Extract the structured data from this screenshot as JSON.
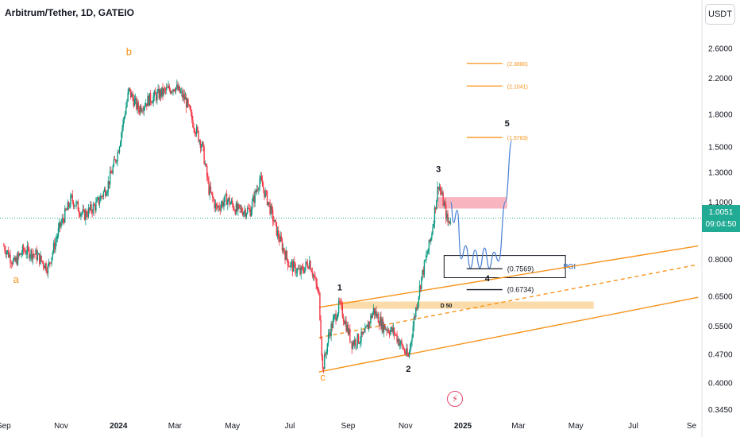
{
  "header": {
    "symbol_title": "Arbitrum/Tether, 1D, GATEIO",
    "currency_button": "USDT"
  },
  "price_tag": {
    "price": "1.0051",
    "countdown": "09:04:50"
  },
  "icons": {
    "alert": "lightning-bolt-icon"
  },
  "colors": {
    "up": "#089981",
    "down": "#f23645",
    "fib": "#f7931a",
    "projection": "#4a7fd4",
    "current_price": "#22ab94"
  },
  "chart_data": {
    "type": "candlestick",
    "title": "Arbitrum/Tether, 1D, GATEIO",
    "y_axis": {
      "scale": "log",
      "range": [
        0.33,
        2.85
      ],
      "ticks": [
        "2.6000",
        "2.2000",
        "1.8000",
        "1.5000",
        "1.3000",
        "1.1000",
        "0.8000",
        "0.6500",
        "0.5500",
        "0.4700",
        "0.4000",
        "0.3450"
      ]
    },
    "x_axis": {
      "ticks": [
        "Sep",
        "Nov",
        "2024",
        "Mar",
        "May",
        "Jul",
        "Sep",
        "Nov",
        "2025",
        "Mar",
        "May",
        "Jul",
        "Se"
      ]
    },
    "price_path": [
      {
        "t": "2023-09-01",
        "p": 0.86
      },
      {
        "t": "2023-09-12",
        "p": 0.78
      },
      {
        "t": "2023-09-22",
        "p": 0.84
      },
      {
        "t": "2023-10-05",
        "p": 0.82
      },
      {
        "t": "2023-10-18",
        "p": 0.76
      },
      {
        "t": "2023-10-30",
        "p": 0.95
      },
      {
        "t": "2023-11-12",
        "p": 1.12
      },
      {
        "t": "2023-11-25",
        "p": 1.02
      },
      {
        "t": "2023-12-08",
        "p": 1.08
      },
      {
        "t": "2023-12-20",
        "p": 1.2
      },
      {
        "t": "2023-12-31",
        "p": 1.45
      },
      {
        "t": "2024-01-12",
        "p": 2.05
      },
      {
        "t": "2024-01-22",
        "p": 1.85
      },
      {
        "t": "2024-02-02",
        "p": 1.95
      },
      {
        "t": "2024-02-15",
        "p": 2.02
      },
      {
        "t": "2024-03-01",
        "p": 2.1
      },
      {
        "t": "2024-03-12",
        "p": 1.95
      },
      {
        "t": "2024-03-20",
        "p": 1.72
      },
      {
        "t": "2024-03-30",
        "p": 1.5
      },
      {
        "t": "2024-04-06",
        "p": 1.18
      },
      {
        "t": "2024-04-14",
        "p": 1.06
      },
      {
        "t": "2024-04-25",
        "p": 1.12
      },
      {
        "t": "2024-05-06",
        "p": 1.05
      },
      {
        "t": "2024-05-20",
        "p": 1.05
      },
      {
        "t": "2024-05-30",
        "p": 1.25
      },
      {
        "t": "2024-06-08",
        "p": 1.1
      },
      {
        "t": "2024-06-18",
        "p": 0.92
      },
      {
        "t": "2024-06-30",
        "p": 0.78
      },
      {
        "t": "2024-07-12",
        "p": 0.74
      },
      {
        "t": "2024-07-22",
        "p": 0.79
      },
      {
        "t": "2024-08-01",
        "p": 0.65
      },
      {
        "t": "2024-08-05",
        "p": 0.43
      },
      {
        "t": "2024-08-12",
        "p": 0.53
      },
      {
        "t": "2024-08-23",
        "p": 0.62
      },
      {
        "t": "2024-09-05",
        "p": 0.5
      },
      {
        "t": "2024-09-18",
        "p": 0.52
      },
      {
        "t": "2024-09-28",
        "p": 0.6
      },
      {
        "t": "2024-10-08",
        "p": 0.55
      },
      {
        "t": "2024-10-20",
        "p": 0.53
      },
      {
        "t": "2024-11-04",
        "p": 0.46
      },
      {
        "t": "2024-11-10",
        "p": 0.57
      },
      {
        "t": "2024-11-18",
        "p": 0.72
      },
      {
        "t": "2024-11-28",
        "p": 0.9
      },
      {
        "t": "2024-12-06",
        "p": 1.22
      },
      {
        "t": "2024-12-12",
        "p": 1.08
      },
      {
        "t": "2024-12-16",
        "p": 0.98
      },
      {
        "t": "2024-12-19",
        "p": 1.0
      }
    ],
    "current_price": 1.0051,
    "wave_labels": [
      {
        "text": "b",
        "t": "2024-01-12",
        "p": 2.5,
        "color": "#f7931a"
      },
      {
        "text": "a",
        "t": "2023-09-14",
        "p": 0.7,
        "color": "#f7931a"
      },
      {
        "text": "c",
        "t": "2024-08-05",
        "p": 0.405,
        "color": "#f7931a"
      },
      {
        "text": "1",
        "t": "2024-08-23",
        "p": 0.67,
        "color": "#131722"
      },
      {
        "text": "2",
        "t": "2024-11-04",
        "p": 0.425,
        "color": "#131722"
      },
      {
        "text": "3",
        "t": "2024-12-06",
        "p": 1.3,
        "color": "#131722"
      },
      {
        "text": "4",
        "t": "2025-01-27",
        "p": 0.705,
        "color": "#131722"
      },
      {
        "text": "5",
        "t": "2025-02-17",
        "p": 1.68,
        "color": "#131722"
      }
    ],
    "targets": [
      {
        "label": "(2.3880)",
        "value": 2.388,
        "from": "2025-01-05",
        "to": "2025-02-12",
        "color": "#f7931a"
      },
      {
        "label": "(2.1041)",
        "value": 2.1041,
        "from": "2025-01-05",
        "to": "2025-02-12",
        "color": "#f7931a"
      },
      {
        "label": "(1.5783)",
        "value": 1.5783,
        "from": "2025-01-05",
        "to": "2025-02-12",
        "color": "#f7931a"
      },
      {
        "label": "(0.7569)",
        "value": 0.7569,
        "from": "2025-01-05",
        "to": "2025-02-12",
        "color": "#131722"
      },
      {
        "label": "(0.6734)",
        "value": 0.6734,
        "from": "2025-01-05",
        "to": "2025-02-12",
        "color": "#131722"
      }
    ],
    "zones": [
      {
        "kind": "resistance",
        "label": "",
        "from": "2024-12-04",
        "to": "2025-02-17",
        "high": 1.13,
        "low": 1.06,
        "color": "#f7a8b4"
      },
      {
        "kind": "poi_box",
        "label": "POI",
        "from": "2024-12-12",
        "to": "2025-04-20",
        "high": 0.815,
        "low": 0.72,
        "color": "#131722"
      },
      {
        "kind": "support",
        "label": "D 50",
        "from": "2024-08-23",
        "to": "2025-05-20",
        "high": 0.63,
        "low": 0.605,
        "color": "#f9d59a"
      }
    ],
    "channel": [
      {
        "role": "upper",
        "from": {
          "t": "2024-08-01",
          "p": 0.61
        },
        "to": {
          "t": "2025-09-08",
          "p": 0.86
        },
        "dashed": false
      },
      {
        "role": "middle",
        "from": {
          "t": "2024-08-01",
          "p": 0.515
        },
        "to": {
          "t": "2025-09-08",
          "p": 0.775
        },
        "dashed": true
      },
      {
        "role": "lower",
        "from": {
          "t": "2024-08-01",
          "p": 0.425
        },
        "to": {
          "t": "2025-09-08",
          "p": 0.645
        },
        "dashed": false
      }
    ],
    "projection": [
      {
        "t": "2024-12-19",
        "p": 1.1
      },
      {
        "t": "2024-12-22",
        "p": 0.98
      },
      {
        "t": "2024-12-26",
        "p": 1.05
      },
      {
        "t": "2024-12-30",
        "p": 0.8
      },
      {
        "t": "2025-01-04",
        "p": 0.86
      },
      {
        "t": "2025-01-09",
        "p": 0.76
      },
      {
        "t": "2025-01-14",
        "p": 0.84
      },
      {
        "t": "2025-01-19",
        "p": 0.76
      },
      {
        "t": "2025-01-24",
        "p": 0.85
      },
      {
        "t": "2025-01-29",
        "p": 0.76
      },
      {
        "t": "2025-02-03",
        "p": 0.83
      },
      {
        "t": "2025-02-08",
        "p": 0.79
      },
      {
        "t": "2025-02-15",
        "p": 1.1
      },
      {
        "t": "2025-02-22",
        "p": 1.55
      }
    ],
    "grid": false,
    "legend": "none"
  }
}
